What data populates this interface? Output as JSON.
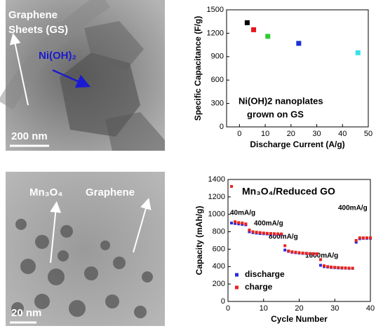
{
  "chart_data": [
    {
      "type": "scatter",
      "x_label": "Discharge Current (A/g)",
      "y_label": "Specific Capacitance (F/g)",
      "annotations": [
        "Ni(OH)2 nanoplates",
        "grown on GS"
      ],
      "xlim": [
        -5,
        50
      ],
      "xticks": [
        0,
        10,
        20,
        30,
        40,
        50
      ],
      "ylim": [
        0,
        1500
      ],
      "yticks": [
        0,
        300,
        600,
        900,
        1200,
        1500
      ],
      "series": [
        {
          "x": [
            3,
            5.5,
            11,
            23,
            46
          ],
          "values": [
            1335,
            1245,
            1160,
            1070,
            950
          ],
          "colors": [
            "#000000",
            "#e8141c",
            "#2fcc2f",
            "#1c2fd8",
            "#38e0e8"
          ]
        }
      ]
    },
    {
      "type": "scatter",
      "title": "Mn₃O₄/Reduced GO",
      "x_label": "Cycle Number",
      "y_label": "Capacity (mAh/g)",
      "annotations": [
        "40mA/g",
        "400mA/g",
        "800mA/g",
        "1600mA/g",
        "400mA/g"
      ],
      "xlim": [
        0,
        40
      ],
      "xticks": [
        0,
        10,
        20,
        30,
        40
      ],
      "ylim": [
        0,
        1400
      ],
      "yticks": [
        0,
        200,
        400,
        600,
        800,
        1000,
        1200,
        1400
      ],
      "legend": "lower left",
      "x": [
        1,
        2,
        3,
        4,
        5,
        6,
        7,
        8,
        9,
        10,
        11,
        12,
        13,
        14,
        15,
        16,
        17,
        18,
        19,
        20,
        21,
        22,
        23,
        24,
        25,
        26,
        27,
        28,
        29,
        30,
        31,
        32,
        33,
        34,
        35,
        36,
        37,
        38,
        39,
        40
      ],
      "series": [
        {
          "name": "discharge",
          "color": "#2a2ad8",
          "values": [
            900,
            895,
            890,
            885,
            880,
            800,
            790,
            785,
            780,
            778,
            775,
            773,
            772,
            770,
            770,
            590,
            575,
            565,
            560,
            555,
            552,
            550,
            548,
            546,
            545,
            415,
            400,
            395,
            390,
            388,
            385,
            383,
            382,
            380,
            380,
            680,
            720,
            725,
            725,
            725
          ]
        },
        {
          "name": "charge",
          "color": "#e8241c",
          "values": [
            1320,
            915,
            905,
            900,
            890,
            820,
            800,
            795,
            790,
            785,
            782,
            780,
            778,
            776,
            775,
            640,
            580,
            570,
            565,
            560,
            556,
            553,
            550,
            548,
            547,
            480,
            410,
            400,
            395,
            392,
            389,
            387,
            385,
            383,
            382,
            700,
            730,
            730,
            730,
            730
          ]
        }
      ]
    }
  ],
  "images": [
    {
      "labels": [
        "Graphene",
        "Sheets (GS)",
        "Ni(OH)₂"
      ],
      "scale_bar": "200 nm"
    },
    {
      "labels": [
        "Mn₃O₄",
        "Graphene"
      ],
      "scale_bar": "20 nm"
    }
  ]
}
